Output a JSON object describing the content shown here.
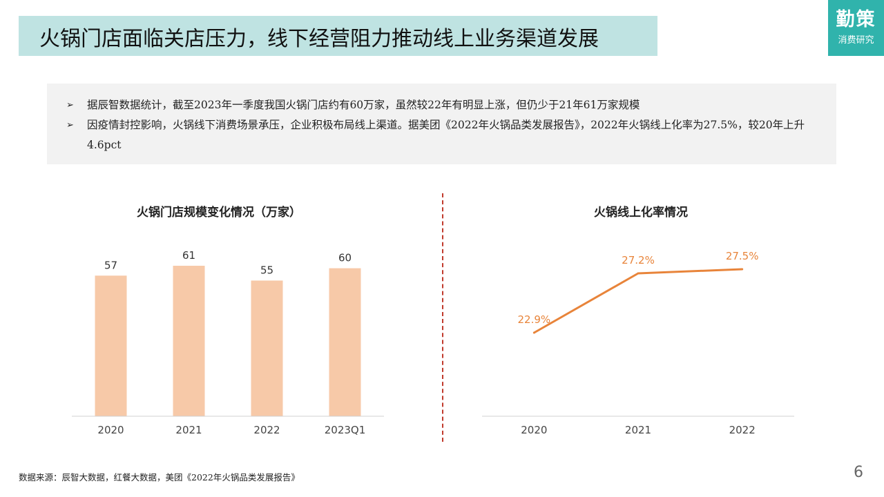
{
  "header": {
    "title": "火锅门店面临关店压力，线下经营阻力推动线上业务渠道发展"
  },
  "brand": {
    "main": "勤策",
    "sub": "消费研究"
  },
  "summary": {
    "bullet_glyph": "➢",
    "bullets": [
      "据辰智数据统计，截至2023年一季度我国火锅门店约有60万家，虽然较22年有明显上涨，但仍少于21年61万家规模",
      "因疫情封控影响，火锅线下消费场景承压，企业积极布局线上渠道。据美团《2022年火锅品类发展报告》，2022年火锅线上化率为27.5%，较20年上升4.6pct"
    ]
  },
  "chart_data": [
    {
      "type": "bar",
      "title": "火锅门店规模变化情况（万家）",
      "categories": [
        "2020",
        "2021",
        "2022",
        "2023Q1"
      ],
      "values": [
        57,
        61,
        55,
        60
      ],
      "data_labels": [
        "57",
        "61",
        "55",
        "60"
      ],
      "bar_color": "#f7c9a8",
      "grid": false,
      "legend": "none"
    },
    {
      "type": "line",
      "title": "火锅线上化率情况",
      "categories": [
        "2020",
        "2021",
        "2022"
      ],
      "values": [
        22.9,
        27.2,
        27.5
      ],
      "data_labels": [
        "22.9%",
        "27.2%",
        "27.5%"
      ],
      "line_color": "#e8843a",
      "label_color": "#e8843a",
      "grid": false,
      "legend": "none"
    }
  ],
  "footer": {
    "source": "数据来源：辰智大数据，红餐大数据，美团《2022年火锅品类发展报告》",
    "page": "6"
  }
}
